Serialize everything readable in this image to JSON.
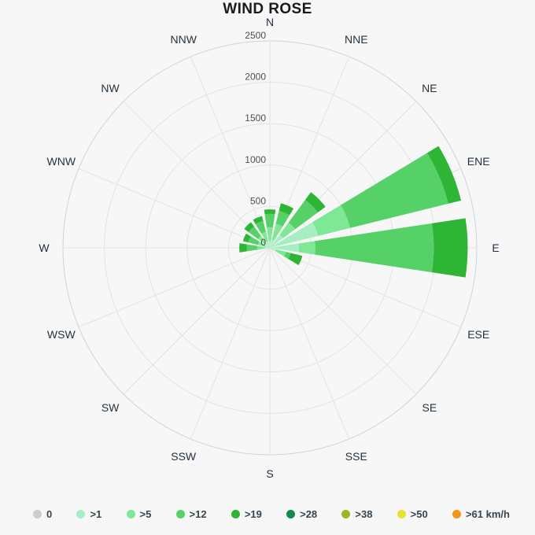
{
  "chart_data": {
    "type": "windrose",
    "title": "WIND ROSE",
    "units": "km/h",
    "radial_axis": {
      "min": 0,
      "max": 2500,
      "tick_interval": 500,
      "ticks": [
        0,
        500,
        1000,
        1500,
        2000,
        2500
      ]
    },
    "directions": [
      "N",
      "NNE",
      "NE",
      "ENE",
      "E",
      "ESE",
      "SE",
      "SSE",
      "S",
      "SSW",
      "SW",
      "WSW",
      "W",
      "WNW",
      "NW",
      "NNW"
    ],
    "grid": {
      "ring_color": "#e3e3e3",
      "outer_ring_color": "#c9d3e7",
      "spoke_color": "#e3e3e3",
      "background": "#f7f7f7"
    },
    "legend_position": "bottom",
    "speed_bins": [
      {
        "label": "0",
        "color": "#cdcdcd"
      },
      {
        "label": ">1",
        "color": "#a7eec3"
      },
      {
        "label": ">5",
        "color": "#7fe894"
      },
      {
        "label": ">12",
        "color": "#55d167"
      },
      {
        "label": ">19",
        "color": "#2eb535"
      },
      {
        "label": ">28",
        "color": "#17894f"
      },
      {
        "label": ">38",
        "color": "#9fb722"
      },
      {
        "label": ">50",
        "color": "#e6e234"
      },
      {
        "label": ">61 km/h",
        "color": "#f2951d"
      }
    ],
    "wind": [
      {
        "dir": "N",
        "segments": [
          {
            "bin": ">1",
            "value": 80
          },
          {
            "bin": ">5",
            "value": 170
          },
          {
            "bin": ">12",
            "value": 160
          },
          {
            "bin": ">19",
            "value": 55
          }
        ]
      },
      {
        "dir": "NNE",
        "segments": [
          {
            "bin": ">1",
            "value": 100
          },
          {
            "bin": ">5",
            "value": 200
          },
          {
            "bin": ">12",
            "value": 160
          },
          {
            "bin": ">19",
            "value": 95
          }
        ]
      },
      {
        "dir": "NE",
        "segments": [
          {
            "bin": ">1",
            "value": 200
          },
          {
            "bin": ">5",
            "value": 180
          },
          {
            "bin": ">12",
            "value": 340
          },
          {
            "bin": ">19",
            "value": 115
          }
        ]
      },
      {
        "dir": "ENE",
        "segments": [
          {
            "bin": ">1",
            "value": 600
          },
          {
            "bin": ">5",
            "value": 400
          },
          {
            "bin": ">12",
            "value": 1220
          },
          {
            "bin": ">19",
            "value": 160
          }
        ]
      },
      {
        "dir": "E",
        "segments": [
          {
            "bin": ">1",
            "value": 350
          },
          {
            "bin": ">5",
            "value": 200
          },
          {
            "bin": ">12",
            "value": 1430
          },
          {
            "bin": ">19",
            "value": 410
          }
        ]
      },
      {
        "dir": "ESE",
        "segments": [
          {
            "bin": ">1",
            "value": 80
          },
          {
            "bin": ">5",
            "value": 120
          },
          {
            "bin": ">12",
            "value": 60
          },
          {
            "bin": ">19",
            "value": 145
          }
        ]
      },
      {
        "dir": "SE",
        "segments": []
      },
      {
        "dir": "SSE",
        "segments": []
      },
      {
        "dir": "S",
        "segments": []
      },
      {
        "dir": "SSW",
        "segments": []
      },
      {
        "dir": "SW",
        "segments": []
      },
      {
        "dir": "WSW",
        "segments": []
      },
      {
        "dir": "W",
        "segments": [
          {
            "bin": ">1",
            "value": 60
          },
          {
            "bin": ">5",
            "value": 90
          },
          {
            "bin": ">12",
            "value": 130
          },
          {
            "bin": ">19",
            "value": 90
          }
        ]
      },
      {
        "dir": "WNW",
        "segments": [
          {
            "bin": ">1",
            "value": 60
          },
          {
            "bin": ">5",
            "value": 90
          },
          {
            "bin": ">12",
            "value": 120
          },
          {
            "bin": ">19",
            "value": 65
          }
        ]
      },
      {
        "dir": "NW",
        "segments": [
          {
            "bin": ">1",
            "value": 70
          },
          {
            "bin": ">5",
            "value": 110
          },
          {
            "bin": ">12",
            "value": 140
          },
          {
            "bin": ">19",
            "value": 65
          }
        ]
      },
      {
        "dir": "NNW",
        "segments": [
          {
            "bin": ">1",
            "value": 80
          },
          {
            "bin": ">5",
            "value": 120
          },
          {
            "bin": ">12",
            "value": 135
          },
          {
            "bin": ">19",
            "value": 60
          }
        ]
      }
    ]
  }
}
